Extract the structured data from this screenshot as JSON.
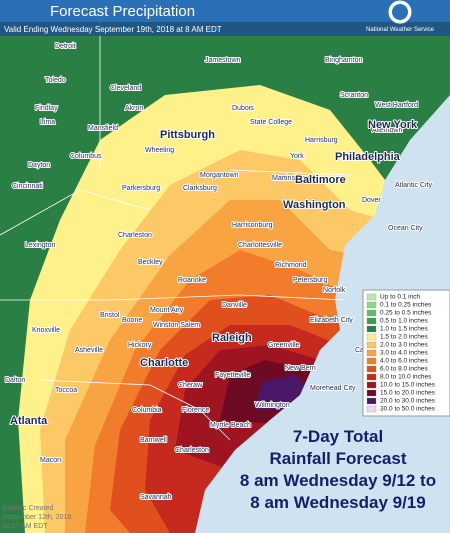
{
  "header": {
    "title": "Forecast Precipitation",
    "valid": "Valid Ending Wednesday September 19th, 2018 at 8 AM EDT",
    "agency": "National Weather Service"
  },
  "map": {
    "cities": [
      "Detroit",
      "Jamestown",
      "Binghamton",
      "Toledo",
      "Cleveland",
      "Akron",
      "Findlay",
      "Lima",
      "Mansfield",
      "Dubois",
      "Scranton",
      "West Hartford",
      "State College",
      "Allentown",
      "New York",
      "Pittsburgh",
      "Columbus",
      "Wheeling",
      "Harrisburg",
      "York",
      "Philadelphia",
      "Dayton",
      "Cincinnati",
      "Morgantown",
      "Parkersburg",
      "Clarksburg",
      "Martinsburg",
      "Baltimore",
      "Atlantic City",
      "Washington",
      "Dover",
      "Charleston",
      "Lexington",
      "Harrisonburg",
      "Charlottesville",
      "Ocean City",
      "Beckley",
      "Roanoke",
      "Richmond",
      "Petersburg",
      "Norfolk",
      "Danville",
      "Knoxville",
      "Bristol",
      "Mount Airy",
      "Elizabeth City",
      "Winston Salem",
      "Boone",
      "Raleigh",
      "Asheville",
      "Hickory",
      "Charlotte",
      "Fayetteville",
      "Greenville",
      "Cape Hatteras",
      "New Bern",
      "Morehead City",
      "Cheraw",
      "Dalton",
      "Toccoa",
      "Columbia",
      "Florence",
      "Wilmington",
      "Myrtle Beach",
      "Atlanta",
      "Macon",
      "Barnwell",
      "Charleston",
      "Savannah"
    ]
  },
  "legend": {
    "items": [
      {
        "label": "Up to 0.1 inch",
        "color": "#b9eab0"
      },
      {
        "label": "0.1 to 0.25 inches",
        "color": "#8fd58a"
      },
      {
        "label": "0.25 to 0.5 inches",
        "color": "#5fbf68"
      },
      {
        "label": "0.5 to 1.0 inches",
        "color": "#3a9e55"
      },
      {
        "label": "1.0 to 1.5 inches",
        "color": "#2a7f45"
      },
      {
        "label": "1.5 to 2.0 inches",
        "color": "#fff18a"
      },
      {
        "label": "2.0 to 3.0 inches",
        "color": "#fdc866"
      },
      {
        "label": "3.0 to 4.0 inches",
        "color": "#f9a443"
      },
      {
        "label": "4.0 to 6.0 inches",
        "color": "#f17c2c"
      },
      {
        "label": "6.0 to 8.0 inches",
        "color": "#e0501f"
      },
      {
        "label": "8.0 to 10.0 inches",
        "color": "#c62a1e"
      },
      {
        "label": "10.0 to 15.0 inches",
        "color": "#9e1420"
      },
      {
        "label": "15.0 to 20.0 inches",
        "color": "#6e0b24"
      },
      {
        "label": "20.0 to 30.0 inches",
        "color": "#4b1869"
      },
      {
        "label": "30.0 to 50.0 inches",
        "color": "#f3d6f3"
      }
    ]
  },
  "caption": {
    "lines": [
      "7-Day Total",
      "Rainfall Forecast",
      "8 am Wednesday 9/12 to",
      "8 am Wednesday 9/19"
    ]
  },
  "footer": {
    "lines": [
      "Graphic Created",
      "September 12th, 2018",
      "10:37 AM EDT"
    ]
  }
}
